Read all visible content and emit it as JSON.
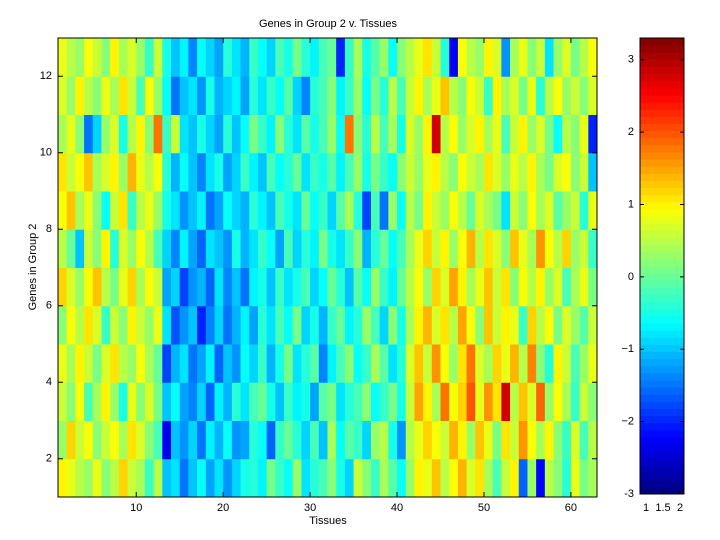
{
  "chart_data": {
    "type": "heatmap",
    "title": "Genes in Group 2 v. Tissues",
    "xlabel": "Tissues",
    "ylabel": "Genes in Group 2",
    "xlim": [
      1,
      63
    ],
    "xticks": [
      10,
      20,
      30,
      40,
      50,
      60
    ],
    "ylim": [
      1,
      13
    ],
    "yticks": [
      2,
      4,
      6,
      8,
      10,
      12
    ],
    "colormap": "jet",
    "colorbar": {
      "ylim": [
        -3,
        3.3
      ],
      "yticks": [
        -3,
        {
          "value": -2,
          "label": "−2"
        },
        {
          "value": -1,
          "label": "−1"
        },
        0,
        1,
        2,
        3
      ],
      "xlim": [
        1,
        2
      ],
      "xticks": [
        1,
        1.5,
        2
      ]
    },
    "z": [
      [
        1.0,
        0.8,
        0.5,
        0.3,
        0.8,
        0.2,
        0.5,
        1.2,
        0.6,
        0.4,
        -0.3,
        0.5,
        -1.0,
        -0.8,
        -1.5,
        -1.0,
        -0.6,
        -1.2,
        -0.8,
        -1.3,
        -0.9,
        -0.5,
        -0.4,
        -0.7,
        0.1,
        -0.3,
        -0.6,
        0.3,
        -0.8,
        -0.4,
        -0.2,
        0.2,
        -0.5,
        -0.9,
        0.6,
        0.2,
        -0.3,
        0.4,
        -0.1,
        -0.6,
        0.3,
        1.0,
        0.8,
        1.3,
        0.5,
        0.9,
        1.4,
        0.7,
        1.1,
        0.4,
        -0.2,
        0.6,
        1.0,
        -1.6,
        0.3,
        -2.2,
        0.5,
        0.2,
        -0.4,
        0.8,
        0.1,
        0.4
      ],
      [
        0.3,
        1.2,
        0.6,
        0.9,
        0.2,
        0.6,
        0.9,
        0.4,
        1.1,
        0.7,
        0.2,
        -0.2,
        -2.3,
        -1.0,
        -1.3,
        -0.9,
        -1.5,
        -0.7,
        -1.1,
        -0.6,
        -1.3,
        -1.2,
        -0.4,
        -0.6,
        -1.6,
        -0.3,
        0.0,
        -0.4,
        -0.9,
        -0.2,
        -1.0,
        0.4,
        -0.6,
        -0.1,
        -0.3,
        -0.9,
        0.3,
        0.5,
        -0.5,
        -1.3,
        0.5,
        0.8,
        1.2,
        0.9,
        0.6,
        1.4,
        1.0,
        0.3,
        1.3,
        0.8,
        0.1,
        1.1,
        0.6,
        1.6,
        0.9,
        0.4,
        1.0,
        0.2,
        -0.3,
        0.7,
        -0.2,
        0.5
      ],
      [
        0.6,
        0.2,
        0.9,
        -0.2,
        0.4,
        1.0,
        0.3,
        -0.5,
        0.8,
        0.2,
        0.7,
        0.1,
        -1.0,
        -0.6,
        -1.2,
        -1.4,
        -0.9,
        -1.6,
        -0.7,
        -1.1,
        -0.4,
        -0.8,
        -0.2,
        0.0,
        -0.5,
        -1.0,
        -0.3,
        -0.7,
        -0.5,
        -1.2,
        -0.1,
        0.1,
        -0.8,
        -0.4,
        -0.2,
        0.2,
        -0.6,
        -0.3,
        0.1,
        -0.5,
        0.6,
        1.5,
        1.0,
        0.4,
        1.8,
        0.9,
        1.2,
        2.0,
        0.8,
        1.6,
        1.1,
        2.8,
        0.5,
        1.3,
        0.7,
        1.9,
        0.3,
        0.9,
        0.4,
        -0.3,
        0.6,
        0.2
      ],
      [
        0.8,
        0.4,
        1.0,
        0.6,
        0.1,
        0.7,
        1.1,
        0.5,
        0.3,
        0.9,
        0.4,
        0.0,
        -1.8,
        -1.1,
        -0.8,
        -1.5,
        -1.2,
        -0.7,
        -1.6,
        -1.0,
        -1.3,
        -0.6,
        -0.9,
        -0.3,
        -1.1,
        -0.5,
        0.1,
        -0.8,
        -0.4,
        -0.1,
        -1.4,
        -0.7,
        -0.2,
        0.2,
        -0.6,
        -0.3,
        0.4,
        -0.1,
        -0.8,
        -0.4,
        0.7,
        1.3,
        0.6,
        1.6,
        0.9,
        0.3,
        1.1,
        1.8,
        0.7,
        0.4,
        1.2,
        0.8,
        1.4,
        0.5,
        1.7,
        0.2,
        -0.4,
        1.0,
        0.6,
        -0.2,
        0.3,
        0.8
      ],
      [
        0.2,
        0.9,
        0.5,
        1.1,
        0.7,
        -0.3,
        0.6,
        0.2,
        1.0,
        0.6,
        0.3,
        0.8,
        -0.8,
        -1.7,
        -1.3,
        -1.0,
        -2.0,
        -1.4,
        -0.9,
        -1.5,
        -1.1,
        -0.7,
        -1.2,
        -0.4,
        -0.8,
        -0.2,
        -0.6,
        0.1,
        -0.9,
        -0.5,
        -1.1,
        -0.3,
        0.0,
        -0.7,
        -0.4,
        0.3,
        -0.2,
        -0.9,
        0.2,
        -0.5,
        0.4,
        1.0,
        1.4,
        0.7,
        1.1,
        0.5,
        1.5,
        0.9,
        0.2,
        1.3,
        0.6,
        1.0,
        0.8,
        -0.3,
        1.2,
        0.5,
        0.9,
        0.1,
        0.7,
        0.3,
        -0.1,
        0.6
      ],
      [
        1.2,
        0.7,
        0.3,
        0.9,
        1.3,
        0.5,
        0.1,
        0.8,
        1.2,
        0.4,
        0.9,
        0.6,
        -1.2,
        -0.9,
        -1.8,
        -1.3,
        -1.1,
        -1.6,
        -0.8,
        -1.4,
        -1.0,
        -1.5,
        -0.7,
        -0.5,
        -1.0,
        -0.3,
        -0.8,
        -0.5,
        -0.2,
        -0.9,
        -0.6,
        0.0,
        -0.4,
        -1.0,
        -0.1,
        -0.6,
        0.3,
        -0.3,
        -0.7,
        0.0,
        0.5,
        0.9,
        0.3,
        1.2,
        0.7,
        1.5,
        1.0,
        0.4,
        0.8,
        1.3,
        0.6,
        1.1,
        0.2,
        0.9,
        0.5,
        1.0,
        0.3,
        0.7,
        -0.2,
        0.4,
        0.8,
        0.1
      ],
      [
        0.5,
        0.0,
        -1.0,
        0.6,
        0.2,
        1.0,
        -0.4,
        0.7,
        0.3,
        0.9,
        0.5,
        -0.2,
        -0.9,
        -1.4,
        -0.7,
        -1.2,
        -1.6,
        -0.8,
        -1.0,
        -1.3,
        -0.5,
        -1.1,
        -0.8,
        -0.3,
        -0.6,
        -1.2,
        -0.2,
        -0.9,
        -0.4,
        -0.7,
        0.1,
        -0.5,
        -0.8,
        -0.3,
        0.2,
        -1.1,
        -0.4,
        0.0,
        -0.6,
        -0.2,
        0.4,
        0.8,
        1.2,
        0.6,
        1.0,
        0.3,
        0.9,
        1.4,
        0.5,
        1.1,
        0.7,
        0.2,
        1.3,
        0.8,
        0.4,
        1.6,
        0.9,
        0.5,
        1.2,
        0.3,
        0.6,
        -0.3
      ],
      [
        0.9,
        1.3,
        0.4,
        0.8,
        0.2,
        -0.6,
        0.6,
        1.1,
        -0.3,
        0.5,
        0.8,
        0.3,
        -0.5,
        -0.8,
        -1.3,
        -1.0,
        -0.7,
        -1.5,
        -1.2,
        -0.6,
        -0.9,
        -1.1,
        -0.4,
        -0.7,
        -1.0,
        -0.2,
        -0.5,
        -0.8,
        0.0,
        -0.6,
        -0.3,
        -0.9,
        -0.1,
        0.4,
        -0.4,
        -1.8,
        -0.2,
        -1.5,
        0.3,
        -0.6,
        0.5,
        0.1,
        1.0,
        0.6,
        0.3,
        0.9,
        0.5,
        0.0,
        0.7,
        0.4,
        0.1,
        -0.8,
        0.6,
        0.2,
        0.9,
        0.4,
        0.7,
        -0.1,
        0.3,
        0.6,
        -0.4,
        0.8
      ],
      [
        1.1,
        0.6,
        0.9,
        1.3,
        0.4,
        0.7,
        1.0,
        0.3,
        1.4,
        0.8,
        0.5,
        0.9,
        -0.4,
        -1.1,
        -0.6,
        -1.0,
        -1.4,
        -0.8,
        -0.5,
        -1.2,
        -0.9,
        -0.3,
        -0.7,
        -1.0,
        -0.2,
        -0.6,
        -0.4,
        0.0,
        -0.8,
        -0.3,
        -0.5,
        -0.1,
        -0.7,
        -0.2,
        0.3,
        -0.5,
        0.1,
        -0.3,
        -0.6,
        0.2,
        0.6,
        0.3,
        0.8,
        1.0,
        0.5,
        0.2,
        0.9,
        0.6,
        0.4,
        1.1,
        0.7,
        0.3,
        0.8,
        0.5,
        1.0,
        0.4,
        0.1,
        0.7,
        0.9,
        0.2,
        0.6,
        -1.0
      ],
      [
        0.4,
        0.8,
        0.2,
        -1.5,
        -0.9,
        0.3,
        0.7,
        -0.5,
        0.5,
        1.0,
        0.2,
        1.8,
        -0.3,
        0.6,
        -0.8,
        -1.0,
        -0.5,
        -0.9,
        -1.2,
        -0.4,
        -1.0,
        -0.6,
        0.1,
        -0.3,
        -0.7,
        0.2,
        -0.4,
        -0.8,
        -0.1,
        -0.5,
        -0.2,
        0.3,
        -0.6,
        1.8,
        0.2,
        -0.4,
        0.5,
        -0.2,
        0.4,
        -0.5,
        0.7,
        0.3,
        1.0,
        2.8,
        0.5,
        0.9,
        0.3,
        0.7,
        1.0,
        0.4,
        0.8,
        -0.2,
        0.6,
        1.0,
        0.3,
        0.7,
        0.1,
        -0.6,
        0.5,
        0.2,
        0.8,
        -2.0
      ],
      [
        0.7,
        0.3,
        1.0,
        0.5,
        0.2,
        0.8,
        0.4,
        1.1,
        0.6,
        -0.2,
        0.9,
        0.3,
        -0.6,
        -1.5,
        -1.0,
        -0.8,
        -1.3,
        -0.5,
        -1.1,
        -0.9,
        -0.7,
        -1.2,
        -0.4,
        -0.8,
        -0.3,
        -0.6,
        -0.1,
        -0.9,
        -1.4,
        -0.4,
        -0.2,
        0.2,
        -0.7,
        -0.3,
        0.3,
        -0.6,
        0.1,
        -0.4,
        0.5,
        -0.2,
        0.6,
        1.0,
        0.4,
        0.8,
        1.3,
        0.5,
        0.2,
        0.9,
        0.6,
        -0.3,
        1.0,
        0.4,
        0.7,
        0.1,
        0.8,
        -0.4,
        0.5,
        0.9,
        0.3,
        0.6,
        0.2,
        0.7
      ],
      [
        0.8,
        0.5,
        0.3,
        0.9,
        0.6,
        0.2,
        1.0,
        0.4,
        0.7,
        0.3,
        -0.3,
        0.6,
        -0.5,
        -1.0,
        -0.7,
        -1.4,
        -0.6,
        -0.9,
        -1.2,
        -0.4,
        -0.8,
        -1.1,
        -0.3,
        -0.6,
        -0.9,
        -0.2,
        -0.5,
        0.1,
        -0.4,
        -0.7,
        -0.2,
        0.0,
        -2.0,
        -0.3,
        0.4,
        -0.5,
        -0.1,
        0.3,
        -0.6,
        0.2,
        0.5,
        0.8,
        1.1,
        0.6,
        -0.4,
        -2.3,
        0.9,
        0.5,
        0.3,
        1.0,
        0.7,
        -1.3,
        0.4,
        0.8,
        0.2,
        0.6,
        -0.8,
        0.3,
        0.7,
        0.1,
        0.5,
        0.9
      ]
    ]
  }
}
